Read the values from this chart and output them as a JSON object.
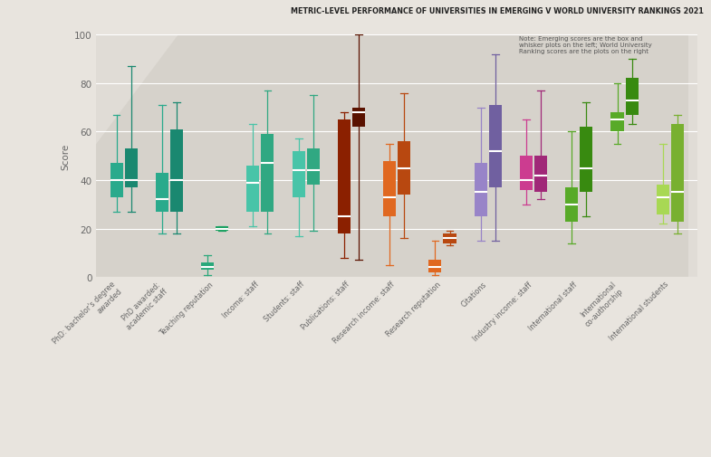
{
  "title": "METRIC-LEVEL PERFORMANCE OF UNIVERSITIES IN EMERGING V WORLD UNIVERSITY RANKINGS 2021",
  "ylabel": "Score",
  "note": "Note: Emerging scores are the box and\nwhisker plots on the left; World University\nRanking scores are the plots on the right",
  "ylim": [
    0,
    100
  ],
  "background_color": "#e8e4de",
  "plot_bg": "#e0dcd6",
  "stripe_color": "#d0ccc4",
  "categories": [
    "PhD: bachelor's degree\nawarded",
    "PhD awarded:\nacademic staff",
    "Teaching reputation",
    "Income: staff",
    "Students: staff",
    "Publications: staff",
    "Research income: staff",
    "Research reputation",
    "Citations",
    "Industry income: staff",
    "International staff",
    "International\nco-authorship",
    "International students"
  ],
  "colors_emerging": [
    "#2aaa8c",
    "#2aaa8c",
    "#28a87a",
    "#48c4a8",
    "#48c4a8",
    "#8b2000",
    "#e06820",
    "#e06820",
    "#9884c8",
    "#cc3c90",
    "#58aa28",
    "#58aa28",
    "#a8d854"
  ],
  "colors_world": [
    "#1a8870",
    "#1a8870",
    "#18a060",
    "#30a882",
    "#30a882",
    "#5a1200",
    "#b84810",
    "#b84810",
    "#7060a0",
    "#a02878",
    "#388a10",
    "#388a10",
    "#78b030"
  ],
  "emerging_boxes": [
    {
      "whislo": 27,
      "q1": 33,
      "med": 40,
      "q3": 47,
      "whishi": 67
    },
    {
      "whislo": 18,
      "q1": 27,
      "med": 32,
      "q3": 43,
      "whishi": 71
    },
    {
      "whislo": 1,
      "q1": 3,
      "med": 4,
      "q3": 6,
      "whishi": 9
    },
    {
      "whislo": 21,
      "q1": 27,
      "med": 39,
      "q3": 46,
      "whishi": 63
    },
    {
      "whislo": 17,
      "q1": 33,
      "med": 44,
      "q3": 52,
      "whishi": 57
    },
    {
      "whislo": 8,
      "q1": 18,
      "med": 25,
      "q3": 65,
      "whishi": 68
    },
    {
      "whislo": 5,
      "q1": 25,
      "med": 33,
      "q3": 48,
      "whishi": 55
    },
    {
      "whislo": 1,
      "q1": 2,
      "med": 4,
      "q3": 7,
      "whishi": 15
    },
    {
      "whislo": 15,
      "q1": 25,
      "med": 35,
      "q3": 47,
      "whishi": 70
    },
    {
      "whislo": 30,
      "q1": 36,
      "med": 40,
      "q3": 50,
      "whishi": 65
    },
    {
      "whislo": 14,
      "q1": 23,
      "med": 30,
      "q3": 37,
      "whishi": 60
    },
    {
      "whislo": 55,
      "q1": 60,
      "med": 65,
      "q3": 68,
      "whishi": 80
    },
    {
      "whislo": 22,
      "q1": 26,
      "med": 33,
      "q3": 38,
      "whishi": 55
    }
  ],
  "world_boxes": [
    {
      "whislo": 27,
      "q1": 37,
      "med": 40,
      "q3": 53,
      "whishi": 87
    },
    {
      "whislo": 18,
      "q1": 27,
      "med": 40,
      "q3": 61,
      "whishi": 72
    },
    {
      "whislo": 19,
      "q1": 19,
      "med": 20,
      "q3": 21,
      "whishi": 21
    },
    {
      "whislo": 18,
      "q1": 27,
      "med": 47,
      "q3": 59,
      "whishi": 77
    },
    {
      "whislo": 19,
      "q1": 38,
      "med": 44,
      "q3": 53,
      "whishi": 75
    },
    {
      "whislo": 7,
      "q1": 62,
      "med": 68,
      "q3": 70,
      "whishi": 100
    },
    {
      "whislo": 16,
      "q1": 34,
      "med": 45,
      "q3": 56,
      "whishi": 76
    },
    {
      "whislo": 13,
      "q1": 14,
      "med": 16,
      "q3": 18,
      "whishi": 19
    },
    {
      "whislo": 15,
      "q1": 37,
      "med": 52,
      "q3": 71,
      "whishi": 92
    },
    {
      "whislo": 32,
      "q1": 35,
      "med": 42,
      "q3": 50,
      "whishi": 77
    },
    {
      "whislo": 25,
      "q1": 35,
      "med": 45,
      "q3": 62,
      "whishi": 72
    },
    {
      "whislo": 63,
      "q1": 67,
      "med": 73,
      "q3": 82,
      "whishi": 90
    },
    {
      "whislo": 18,
      "q1": 23,
      "med": 35,
      "q3": 63,
      "whishi": 67
    }
  ]
}
